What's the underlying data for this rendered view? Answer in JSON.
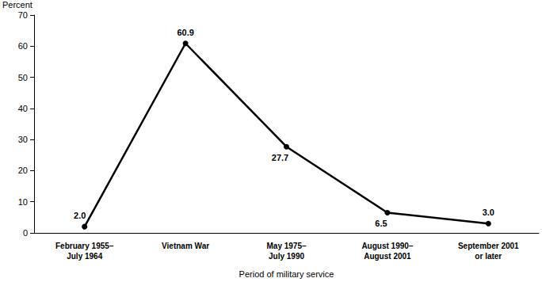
{
  "chart_data": {
    "type": "line",
    "y_label": "Percent",
    "x_label": "Period of military service",
    "categories": [
      "February 1955–\nJuly 1964",
      "Vietnam War",
      "May 1975–\nJuly 1990",
      "August 1990–\nAugust 2001",
      "September 2001\nor later"
    ],
    "values": [
      2.0,
      60.9,
      27.7,
      6.5,
      3.0
    ],
    "value_labels": [
      "2.0",
      "60.9",
      "27.7",
      "6.5",
      "3.0"
    ],
    "color": "#000000",
    "marker": "circle",
    "ylim": [
      0,
      70
    ],
    "yticks": [
      0,
      10,
      20,
      30,
      40,
      50,
      60,
      70
    ],
    "grid": false,
    "data_labels": true
  }
}
